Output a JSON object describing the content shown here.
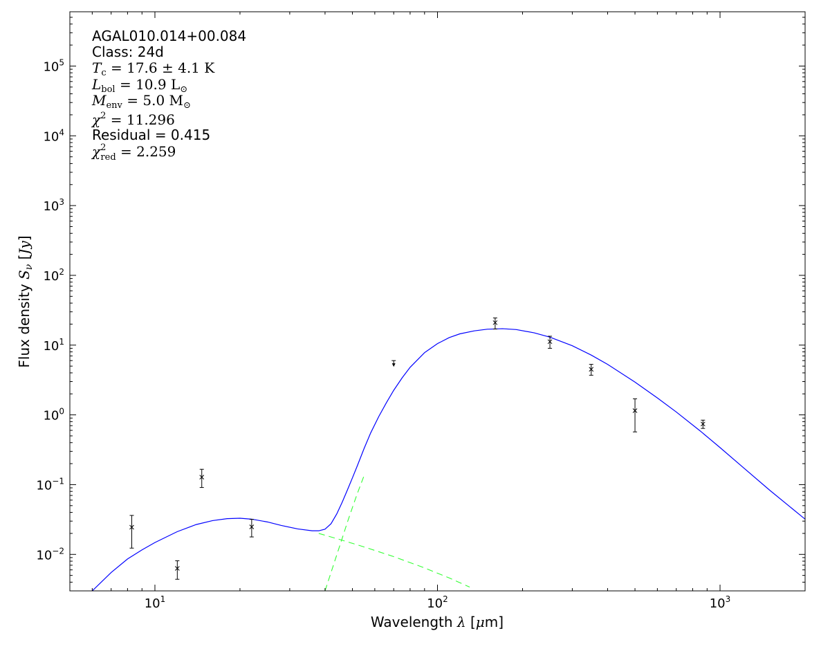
{
  "chart_data": {
    "type": "scatter",
    "x_scale": "log",
    "y_scale": "log",
    "xlim": [
      5,
      2000
    ],
    "ylim": [
      0.003,
      600000
    ],
    "xlabel": "Wavelength λ [μm]",
    "ylabel": "Flux density S_ν [Jy]",
    "x_ticks": [
      {
        "value": 10,
        "base": "10",
        "exp": "1"
      },
      {
        "value": 100,
        "base": "10",
        "exp": "2"
      },
      {
        "value": 1000,
        "base": "10",
        "exp": "3"
      }
    ],
    "y_ticks": [
      {
        "value": 0.01,
        "base": "10",
        "exp": "−2"
      },
      {
        "value": 0.1,
        "base": "10",
        "exp": "−1"
      },
      {
        "value": 1,
        "base": "10",
        "exp": "0"
      },
      {
        "value": 10,
        "base": "10",
        "exp": "1"
      },
      {
        "value": 100,
        "base": "10",
        "exp": "2"
      },
      {
        "value": 1000,
        "base": "10",
        "exp": "3"
      },
      {
        "value": 10000,
        "base": "10",
        "exp": "4"
      },
      {
        "value": 100000,
        "base": "10",
        "exp": "5"
      }
    ],
    "annotations": {
      "source_name": "AGAL010.014+00.084",
      "class_line": "Class: 24d",
      "tc": {
        "sym": "T",
        "sub": "c",
        "rest": " = 17.6 ± 4.1 K"
      },
      "lbol": {
        "sym": "L",
        "sub": "bol",
        "rest": " = 10.9 L",
        "suffix_sub": "⊙"
      },
      "menv": {
        "sym": "M",
        "sub": "env",
        "rest": " = 5.0 M",
        "suffix_sub": "⊙"
      },
      "chi2": {
        "sym": "χ",
        "sup": "2",
        "rest": " = 11.296"
      },
      "residual_line": "Residual = 0.415",
      "chi2red": {
        "sym": "χ",
        "sup": "2",
        "sub": "red",
        "rest": " = 2.259"
      }
    },
    "series": [
      {
        "kind": "data",
        "points": [
          {
            "x": 8.28,
            "y": 0.0245,
            "ylo": 0.0123,
            "yhi": 0.0362
          },
          {
            "x": 12.0,
            "y": 0.0063,
            "ylo": 0.0044,
            "yhi": 0.0081
          },
          {
            "x": 14.65,
            "y": 0.128,
            "ylo": 0.091,
            "yhi": 0.166
          },
          {
            "x": 22.0,
            "y": 0.0248,
            "ylo": 0.0178,
            "yhi": 0.0318
          },
          {
            "x": 160,
            "y": 21.0,
            "ylo": 17.0,
            "yhi": 24.5
          },
          {
            "x": 250,
            "y": 11.2,
            "ylo": 9.0,
            "yhi": 13.4
          },
          {
            "x": 350,
            "y": 4.5,
            "ylo": 3.7,
            "yhi": 5.3
          },
          {
            "x": 500,
            "y": 1.15,
            "ylo": 0.57,
            "yhi": 1.7
          },
          {
            "x": 870,
            "y": 0.74,
            "ylo": 0.64,
            "yhi": 0.84
          }
        ]
      },
      {
        "kind": "upper_limit",
        "points": [
          {
            "x": 70,
            "y": 5.0,
            "top": 6.0
          }
        ]
      },
      {
        "kind": "total_model",
        "color": "#0000ff",
        "x": [
          6.0,
          7.0,
          8.0,
          9.0,
          10.0,
          12.0,
          14.0,
          16.0,
          18.0,
          20.0,
          22.0,
          25.0,
          28.0,
          32.0,
          36.0,
          38.0,
          40.0,
          42.0,
          44.0,
          46.0,
          48.0,
          50.0,
          52.0,
          55.0,
          58.0,
          62.0,
          66.0,
          70.0,
          75.0,
          80.0,
          90.0,
          100.0,
          110.0,
          120.0,
          135.0,
          150.0,
          170.0,
          190.0,
          220.0,
          250.0,
          300.0,
          350.0,
          400.0,
          500.0,
          600.0,
          700.0,
          850.0,
          1000.0,
          1200.0,
          1500.0,
          2000.0
        ],
        "y": [
          0.003,
          0.0055,
          0.0086,
          0.0116,
          0.0148,
          0.0212,
          0.0268,
          0.0305,
          0.0325,
          0.033,
          0.032,
          0.0292,
          0.026,
          0.0232,
          0.0218,
          0.0218,
          0.023,
          0.0275,
          0.038,
          0.056,
          0.084,
          0.125,
          0.185,
          0.33,
          0.55,
          0.95,
          1.5,
          2.25,
          3.4,
          4.8,
          7.8,
          10.5,
          12.8,
          14.5,
          16.0,
          16.9,
          17.2,
          16.7,
          15.0,
          13.0,
          9.8,
          7.2,
          5.3,
          2.95,
          1.75,
          1.1,
          0.59,
          0.34,
          0.18,
          0.083,
          0.032
        ]
      },
      {
        "kind": "warm_component",
        "color": "#33ff33",
        "dashed": true,
        "x": [
          38.0,
          45.0,
          55.0,
          70.0,
          90.0,
          110.0,
          130.0
        ],
        "y": [
          0.02,
          0.0164,
          0.0128,
          0.0093,
          0.0064,
          0.0046,
          0.0034
        ]
      },
      {
        "kind": "cold_component",
        "color": "#33ff33",
        "dashed": true,
        "x": [
          40.0,
          42.0,
          44.0,
          46.0,
          48.0,
          50.0,
          52.0,
          55.0
        ],
        "y": [
          0.003,
          0.0055,
          0.0098,
          0.017,
          0.029,
          0.047,
          0.074,
          0.135
        ]
      }
    ]
  }
}
